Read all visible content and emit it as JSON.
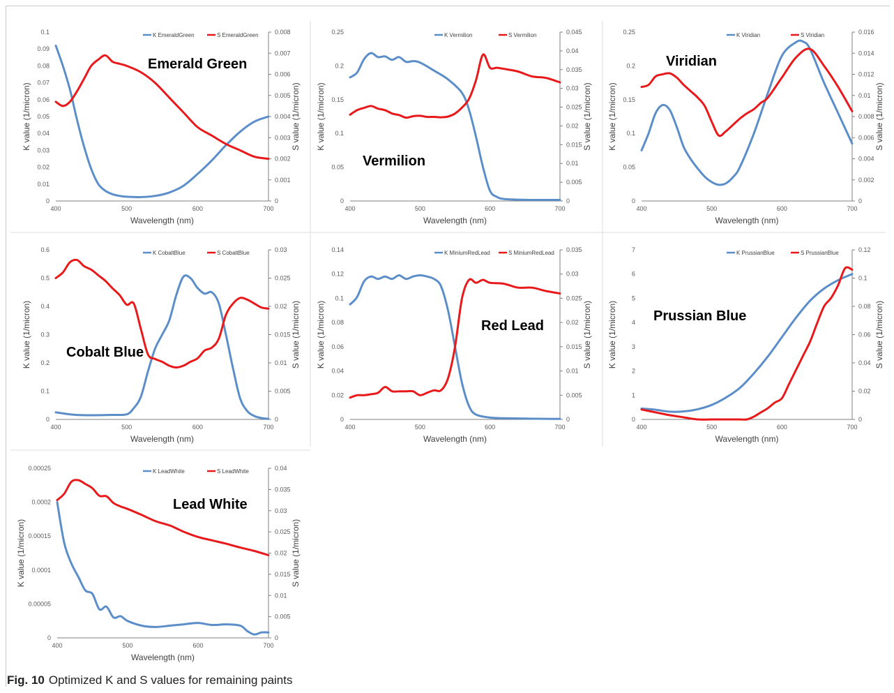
{
  "caption": {
    "label": "Fig. 10",
    "text": "Optimized K and S values for remaining paints"
  },
  "colors": {
    "k_series": "#5b8ec9",
    "s_series": "#e8191b",
    "axis": "#7f7f7f",
    "text": "#595959",
    "divider": "#dddddd"
  },
  "chart_data": [
    {
      "type": "line",
      "title": "Emerald Green",
      "xlabel": "Wavelength (nm)",
      "ylabel": "K value (1/micron)",
      "y2label": "S value (1/micron)",
      "xlim": [
        400,
        700
      ],
      "ylim": [
        0,
        0.1
      ],
      "y2lim": [
        0,
        0.008
      ],
      "xticks": [
        "400",
        "500",
        "600",
        "700"
      ],
      "yticks": [
        "0",
        "0.01",
        "0.02",
        "0.03",
        "0.04",
        "0.05",
        "0.06",
        "0.07",
        "0.08",
        "0.09",
        "0.1"
      ],
      "y2ticks": [
        "0",
        "0.001",
        "0.002",
        "0.003",
        "0.004",
        "0.005",
        "0.006",
        "0.007",
        "0.008"
      ],
      "legend": "top-right",
      "series": [
        {
          "name": "K EmeraldGreen",
          "axis": "left",
          "x": [
            400,
            410,
            420,
            430,
            440,
            450,
            460,
            470,
            480,
            490,
            500,
            520,
            540,
            560,
            580,
            600,
            620,
            640,
            660,
            680,
            700
          ],
          "y": [
            0.092,
            0.08,
            0.066,
            0.048,
            0.032,
            0.019,
            0.01,
            0.006,
            0.004,
            0.003,
            0.0025,
            0.0023,
            0.003,
            0.005,
            0.009,
            0.016,
            0.024,
            0.033,
            0.041,
            0.047,
            0.05
          ]
        },
        {
          "name": "S EmeraldGreen",
          "axis": "right",
          "x": [
            400,
            410,
            420,
            430,
            440,
            450,
            460,
            470,
            480,
            490,
            500,
            520,
            540,
            560,
            580,
            600,
            620,
            640,
            660,
            680,
            700
          ],
          "y": [
            0.0047,
            0.0045,
            0.0047,
            0.0052,
            0.0058,
            0.0064,
            0.0067,
            0.0069,
            0.0066,
            0.0065,
            0.0064,
            0.0061,
            0.0056,
            0.0049,
            0.0042,
            0.0035,
            0.0031,
            0.0027,
            0.0024,
            0.0021,
            0.002
          ]
        }
      ]
    },
    {
      "type": "line",
      "title": "Vermilion",
      "xlabel": "Wavelength (nm)",
      "ylabel": "K value (1/micron)",
      "y2label": "S value (1/micron)",
      "xlim": [
        400,
        700
      ],
      "ylim": [
        0,
        0.25
      ],
      "y2lim": [
        0,
        0.045
      ],
      "xticks": [
        "400",
        "500",
        "600",
        "700"
      ],
      "yticks": [
        "0",
        "0.05",
        "0.1",
        "0.15",
        "0.2",
        "0.25"
      ],
      "y2ticks": [
        "0",
        "0.005",
        "0.01",
        "0.015",
        "0.02",
        "0.025",
        "0.03",
        "0.035",
        "0.04",
        "0.045"
      ],
      "legend": "top-right",
      "series": [
        {
          "name": "K Vermilion",
          "axis": "left",
          "x": [
            400,
            410,
            420,
            430,
            440,
            450,
            460,
            470,
            480,
            490,
            500,
            520,
            540,
            560,
            570,
            580,
            590,
            600,
            610,
            620,
            640,
            660,
            680,
            700
          ],
          "y": [
            0.183,
            0.19,
            0.21,
            0.219,
            0.213,
            0.214,
            0.209,
            0.213,
            0.206,
            0.207,
            0.205,
            0.193,
            0.18,
            0.16,
            0.135,
            0.095,
            0.05,
            0.015,
            0.006,
            0.003,
            0.002,
            0.0015,
            0.0015,
            0.0015
          ]
        },
        {
          "name": "S Vermilion",
          "axis": "right",
          "x": [
            400,
            410,
            420,
            430,
            440,
            450,
            460,
            470,
            480,
            490,
            500,
            510,
            520,
            530,
            540,
            550,
            560,
            570,
            580,
            590,
            600,
            610,
            620,
            640,
            660,
            680,
            700
          ],
          "y": [
            0.023,
            0.0242,
            0.0248,
            0.0253,
            0.0246,
            0.0242,
            0.0233,
            0.0229,
            0.0222,
            0.0226,
            0.0227,
            0.0224,
            0.0224,
            0.0223,
            0.0225,
            0.0233,
            0.0249,
            0.0272,
            0.0322,
            0.039,
            0.0355,
            0.0355,
            0.0352,
            0.0345,
            0.0332,
            0.0328,
            0.0316
          ]
        }
      ]
    },
    {
      "type": "line",
      "title": "Viridian",
      "xlabel": "Wavelength (nm)",
      "ylabel": "K value (1/micron)",
      "y2label": "S value (1/micron)",
      "xlim": [
        400,
        700
      ],
      "ylim": [
        0,
        0.25
      ],
      "y2lim": [
        0,
        0.016
      ],
      "xticks": [
        "400",
        "500",
        "600",
        "700"
      ],
      "yticks": [
        "0",
        "0.05",
        "0.1",
        "0.15",
        "0.2",
        "0.25"
      ],
      "y2ticks": [
        "0",
        "0.002",
        "0.004",
        "0.006",
        "0.008",
        "0.01",
        "0.012",
        "0.014",
        "0.016"
      ],
      "legend": "top-right",
      "series": [
        {
          "name": "K Viridian",
          "axis": "left",
          "x": [
            400,
            410,
            420,
            430,
            440,
            450,
            460,
            470,
            480,
            490,
            500,
            510,
            520,
            530,
            540,
            560,
            580,
            600,
            620,
            630,
            640,
            660,
            680,
            700
          ],
          "y": [
            0.075,
            0.1,
            0.13,
            0.142,
            0.135,
            0.11,
            0.08,
            0.062,
            0.048,
            0.036,
            0.028,
            0.024,
            0.026,
            0.035,
            0.05,
            0.1,
            0.16,
            0.215,
            0.235,
            0.236,
            0.225,
            0.175,
            0.13,
            0.085
          ]
        },
        {
          "name": "S Viridian",
          "axis": "right",
          "x": [
            400,
            410,
            420,
            430,
            440,
            450,
            460,
            470,
            480,
            490,
            500,
            510,
            520,
            530,
            540,
            550,
            560,
            570,
            580,
            600,
            620,
            640,
            660,
            680,
            700
          ],
          "y": [
            0.0108,
            0.011,
            0.0118,
            0.012,
            0.0121,
            0.0117,
            0.011,
            0.0104,
            0.0098,
            0.009,
            0.0075,
            0.0062,
            0.0066,
            0.0072,
            0.0078,
            0.0083,
            0.0087,
            0.0093,
            0.0098,
            0.0117,
            0.0136,
            0.0144,
            0.0128,
            0.0108,
            0.0085
          ]
        }
      ]
    },
    {
      "type": "line",
      "title": "Cobalt Blue",
      "xlabel": "Wavelength (nm)",
      "ylabel": "K value (1/micron)",
      "y2label": "S value (1/micron)",
      "xlim": [
        400,
        700
      ],
      "ylim": [
        0,
        0.6
      ],
      "y2lim": [
        0,
        0.03
      ],
      "xticks": [
        "400",
        "500",
        "600",
        "700"
      ],
      "yticks": [
        "0",
        "0.1",
        "0.2",
        "0.3",
        "0.4",
        "0.5",
        "0.6"
      ],
      "y2ticks": [
        "0",
        "0.005",
        "0.01",
        "0.015",
        "0.02",
        "0.025",
        "0.03"
      ],
      "legend": "top-right",
      "series": [
        {
          "name": "K CobaltBlue",
          "axis": "left",
          "x": [
            400,
            420,
            440,
            460,
            480,
            500,
            510,
            520,
            530,
            540,
            550,
            560,
            570,
            580,
            590,
            600,
            610,
            620,
            630,
            640,
            650,
            660,
            670,
            680,
            690,
            700
          ],
          "y": [
            0.025,
            0.018,
            0.015,
            0.015,
            0.016,
            0.018,
            0.04,
            0.08,
            0.17,
            0.25,
            0.3,
            0.35,
            0.44,
            0.505,
            0.5,
            0.465,
            0.445,
            0.45,
            0.41,
            0.3,
            0.18,
            0.075,
            0.03,
            0.012,
            0.005,
            0.002
          ]
        },
        {
          "name": "S CobaltBlue",
          "axis": "right",
          "x": [
            400,
            410,
            420,
            430,
            440,
            450,
            460,
            470,
            480,
            490,
            500,
            510,
            520,
            530,
            540,
            550,
            560,
            570,
            580,
            590,
            600,
            610,
            620,
            630,
            640,
            650,
            660,
            670,
            680,
            690,
            700
          ],
          "y": [
            0.025,
            0.026,
            0.0278,
            0.0282,
            0.0271,
            0.0265,
            0.0255,
            0.0245,
            0.0232,
            0.022,
            0.0203,
            0.0205,
            0.016,
            0.0115,
            0.0107,
            0.0102,
            0.0095,
            0.0092,
            0.0095,
            0.0102,
            0.0108,
            0.0122,
            0.0127,
            0.0143,
            0.0185,
            0.0205,
            0.0215,
            0.0212,
            0.0205,
            0.0198,
            0.0196
          ]
        }
      ]
    },
    {
      "type": "line",
      "title": "Red Lead",
      "xlabel": "Wavelength (nm)",
      "ylabel": "K value (1/micron)",
      "y2label": "S value (1/micron)",
      "xlim": [
        400,
        700
      ],
      "ylim": [
        0,
        0.14
      ],
      "y2lim": [
        0,
        0.035
      ],
      "xticks": [
        "400",
        "500",
        "600",
        "700"
      ],
      "yticks": [
        "0",
        "0.02",
        "0.04",
        "0.06",
        "0.08",
        "0.1",
        "0.12",
        "0.14"
      ],
      "y2ticks": [
        "0",
        "0.005",
        "0.01",
        "0.015",
        "0.02",
        "0.025",
        "0.03",
        "0.035"
      ],
      "legend": "top-right",
      "series": [
        {
          "name": "K MiniumRedLead",
          "axis": "left",
          "x": [
            400,
            410,
            420,
            430,
            440,
            450,
            460,
            470,
            480,
            490,
            500,
            510,
            520,
            530,
            540,
            550,
            560,
            570,
            580,
            600,
            620,
            640,
            660,
            680,
            700
          ],
          "y": [
            0.095,
            0.101,
            0.114,
            0.118,
            0.116,
            0.118,
            0.116,
            0.119,
            0.116,
            0.118,
            0.119,
            0.118,
            0.116,
            0.11,
            0.09,
            0.06,
            0.03,
            0.011,
            0.004,
            0.0015,
            0.001,
            0.0008,
            0.0006,
            0.0005,
            0.0004
          ]
        },
        {
          "name": "S MiniumRedLead",
          "axis": "right",
          "x": [
            400,
            410,
            420,
            430,
            440,
            450,
            460,
            470,
            480,
            490,
            500,
            510,
            520,
            530,
            540,
            550,
            560,
            570,
            580,
            590,
            600,
            620,
            640,
            660,
            680,
            700
          ],
          "y": [
            0.0045,
            0.005,
            0.005,
            0.0052,
            0.0055,
            0.0067,
            0.0058,
            0.0058,
            0.0058,
            0.0058,
            0.005,
            0.0055,
            0.006,
            0.006,
            0.0085,
            0.015,
            0.025,
            0.0288,
            0.0282,
            0.0288,
            0.0282,
            0.028,
            0.0272,
            0.0272,
            0.0265,
            0.026
          ]
        }
      ]
    },
    {
      "type": "line",
      "title": "Prussian Blue",
      "xlabel": "Wavelength (nm)",
      "ylabel": "K value (1/micron)",
      "y2label": "S value (1/micron)",
      "xlim": [
        400,
        700
      ],
      "ylim": [
        0,
        7
      ],
      "y2lim": [
        0,
        0.12
      ],
      "xticks": [
        "400",
        "500",
        "600",
        "700"
      ],
      "yticks": [
        "0",
        "1",
        "2",
        "3",
        "4",
        "5",
        "6",
        "7"
      ],
      "y2ticks": [
        "0",
        "0.02",
        "0.04",
        "0.06",
        "0.08",
        "0.1",
        "0.12"
      ],
      "legend": "top-right",
      "series": [
        {
          "name": "K PrussianBlue",
          "axis": "left",
          "x": [
            400,
            420,
            440,
            460,
            480,
            500,
            520,
            540,
            560,
            580,
            600,
            620,
            640,
            660,
            680,
            700
          ],
          "y": [
            0.45,
            0.4,
            0.32,
            0.33,
            0.42,
            0.6,
            0.9,
            1.3,
            1.9,
            2.6,
            3.4,
            4.2,
            4.9,
            5.4,
            5.75,
            6.0
          ]
        },
        {
          "name": "S PrussianBlue",
          "axis": "right",
          "x": [
            400,
            420,
            440,
            460,
            480,
            500,
            520,
            540,
            550,
            560,
            570,
            580,
            590,
            600,
            610,
            620,
            630,
            640,
            650,
            660,
            670,
            680,
            690,
            700
          ],
          "y": [
            0.007,
            0.005,
            0.003,
            0.0015,
            0.0,
            0.0,
            0.0,
            0.0,
            0.0,
            0.002,
            0.005,
            0.008,
            0.012,
            0.015,
            0.025,
            0.035,
            0.045,
            0.055,
            0.068,
            0.08,
            0.086,
            0.095,
            0.107,
            0.106
          ]
        }
      ]
    },
    {
      "type": "line",
      "title": "Lead White",
      "xlabel": "Wavelength (nm)",
      "ylabel": "K value (1/micron)",
      "y2label": "S value (1/micron)",
      "xlim": [
        400,
        700
      ],
      "ylim": [
        0,
        0.00025
      ],
      "y2lim": [
        0,
        0.04
      ],
      "xticks": [
        "400",
        "500",
        "600",
        "700"
      ],
      "yticks": [
        "0",
        "0.00005",
        "0.0001",
        "0.00015",
        "0.0002",
        "0.00025"
      ],
      "y2ticks": [
        "0",
        "0.005",
        "0.01",
        "0.015",
        "0.02",
        "0.025",
        "0.03",
        "0.035",
        "0.04"
      ],
      "legend": "top-right",
      "series": [
        {
          "name": "K LeadWhite",
          "axis": "left",
          "x": [
            400,
            410,
            420,
            430,
            440,
            450,
            460,
            470,
            480,
            490,
            500,
            520,
            540,
            560,
            580,
            600,
            620,
            640,
            660,
            670,
            680,
            690,
            700
          ],
          "y": [
            0.0002,
            0.00014,
            0.00011,
            9e-05,
            7e-05,
            6.5e-05,
            4.2e-05,
            4.6e-05,
            3e-05,
            3.2e-05,
            2.5e-05,
            1.8e-05,
            1.6e-05,
            1.8e-05,
            2e-05,
            2.2e-05,
            1.9e-05,
            2e-05,
            1.8e-05,
            1e-05,
            5e-06,
            8e-06,
            8e-06
          ]
        },
        {
          "name": "S LeadWhite",
          "axis": "right",
          "x": [
            400,
            410,
            420,
            430,
            440,
            450,
            460,
            470,
            480,
            490,
            500,
            520,
            540,
            560,
            580,
            600,
            620,
            640,
            660,
            680,
            700
          ],
          "y": [
            0.0325,
            0.034,
            0.0368,
            0.0372,
            0.0363,
            0.0353,
            0.0335,
            0.0334,
            0.0318,
            0.031,
            0.0304,
            0.029,
            0.0275,
            0.0265,
            0.025,
            0.0238,
            0.023,
            0.0222,
            0.0213,
            0.0205,
            0.0195
          ]
        }
      ]
    }
  ]
}
